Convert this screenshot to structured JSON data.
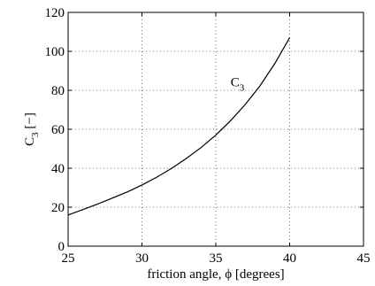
{
  "chart_data": {
    "type": "line",
    "xlabel": "friction angle, ϕ [degrees]",
    "ylabel_main": "C",
    "ylabel_sub": "3",
    "ylabel_unit": " [−]",
    "xlim": [
      25,
      45
    ],
    "ylim": [
      0,
      120
    ],
    "xticks": [
      25,
      30,
      35,
      40,
      45
    ],
    "yticks": [
      0,
      20,
      40,
      60,
      80,
      100,
      120
    ],
    "grid": true,
    "grid_style": "dotted",
    "line_color": "#000000",
    "series": [
      {
        "annotation_main": "C",
        "annotation_sub": "3",
        "annotation_x": 36.0,
        "annotation_y": 82,
        "x": [
          25,
          26,
          27,
          28,
          29,
          30,
          31,
          32,
          33,
          34,
          35,
          36,
          37,
          38,
          39,
          40
        ],
        "y": [
          16.0,
          18.8,
          21.6,
          24.7,
          27.8,
          31.4,
          35.4,
          39.9,
          45.0,
          50.6,
          57.0,
          64.4,
          72.8,
          82.4,
          93.8,
          107.0
        ]
      }
    ]
  }
}
